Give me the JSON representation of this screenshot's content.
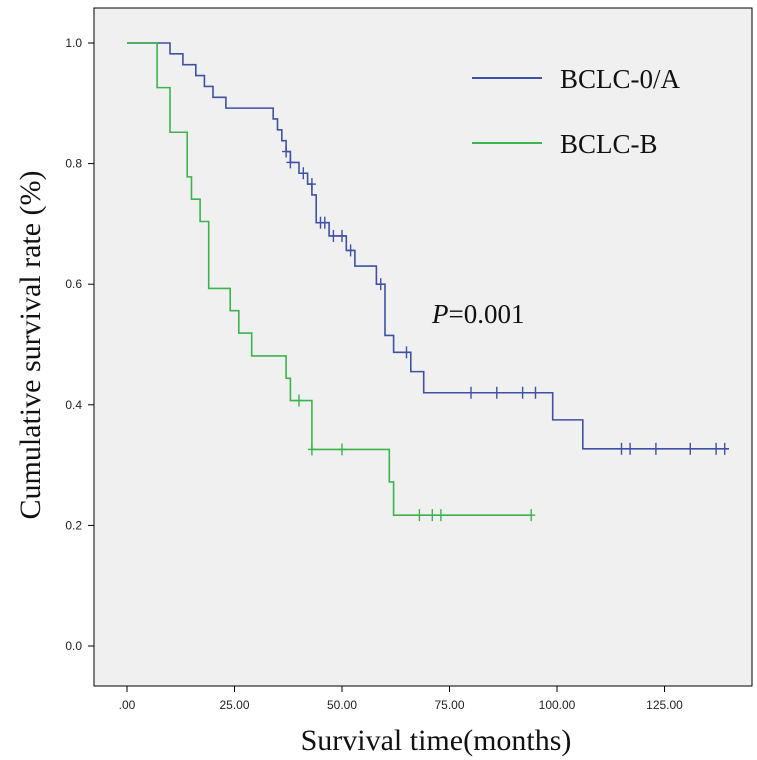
{
  "chart_data": {
    "type": "line",
    "subtype": "kaplan-meier",
    "xlabel": "Survival time(months)",
    "ylabel": "Cumulative survival rate (%)",
    "xlim": [
      0,
      140
    ],
    "ylim": [
      0,
      1.0
    ],
    "x_ticks": [
      0,
      25,
      50,
      75,
      100,
      125
    ],
    "x_tick_labels": [
      ".00",
      "25.00",
      "50.00",
      "75.00",
      "100.00",
      "125.00"
    ],
    "y_ticks": [
      0,
      0.2,
      0.4,
      0.6,
      0.8,
      1.0
    ],
    "y_tick_labels": [
      "0.0",
      "0.2",
      "0.4",
      "0.6",
      "0.8",
      "1.0"
    ],
    "grid": false,
    "legend_position": "top-right",
    "annotation": {
      "italic": "P",
      "rest": "=0.001"
    },
    "series": [
      {
        "name": "BCLC-0/A",
        "color": "#3F51A5",
        "steps": [
          [
            0,
            1.0
          ],
          [
            10,
            0.982
          ],
          [
            13,
            0.964
          ],
          [
            16,
            0.946
          ],
          [
            18,
            0.928
          ],
          [
            20,
            0.91
          ],
          [
            23,
            0.892
          ],
          [
            34,
            0.874
          ],
          [
            35,
            0.856
          ],
          [
            36,
            0.838
          ],
          [
            37,
            0.82
          ],
          [
            38,
            0.802
          ],
          [
            40,
            0.784
          ],
          [
            42,
            0.766
          ],
          [
            43,
            0.748
          ],
          [
            44,
            0.702
          ],
          [
            47,
            0.68
          ],
          [
            51,
            0.656
          ],
          [
            53,
            0.63
          ],
          [
            58,
            0.6
          ],
          [
            60,
            0.515
          ],
          [
            62,
            0.487
          ],
          [
            66,
            0.455
          ],
          [
            69,
            0.42
          ],
          [
            99,
            0.375
          ],
          [
            106,
            0.327
          ]
        ],
        "end_x": 140,
        "censored": [
          [
            37,
            0.82
          ],
          [
            38,
            0.802
          ],
          [
            41,
            0.784
          ],
          [
            43,
            0.766
          ],
          [
            45,
            0.702
          ],
          [
            46,
            0.702
          ],
          [
            48,
            0.68
          ],
          [
            50,
            0.68
          ],
          [
            52,
            0.656
          ],
          [
            59,
            0.6
          ],
          [
            65,
            0.487
          ],
          [
            80,
            0.42
          ],
          [
            86,
            0.42
          ],
          [
            92,
            0.42
          ],
          [
            95,
            0.42
          ],
          [
            115,
            0.327
          ],
          [
            117,
            0.327
          ],
          [
            123,
            0.327
          ],
          [
            131,
            0.327
          ],
          [
            137,
            0.327
          ],
          [
            139,
            0.327
          ]
        ]
      },
      {
        "name": "BCLC-B",
        "color": "#3CB44B",
        "steps": [
          [
            0,
            1.0
          ],
          [
            7,
            0.926
          ],
          [
            10,
            0.852
          ],
          [
            14,
            0.778
          ],
          [
            15,
            0.741
          ],
          [
            17,
            0.704
          ],
          [
            19,
            0.593
          ],
          [
            24,
            0.556
          ],
          [
            26,
            0.519
          ],
          [
            29,
            0.481
          ],
          [
            37,
            0.444
          ],
          [
            38,
            0.407
          ],
          [
            43,
            0.326
          ],
          [
            61,
            0.272
          ],
          [
            62,
            0.217
          ]
        ],
        "end_x": 94,
        "censored": [
          [
            40,
            0.407
          ],
          [
            43,
            0.326
          ],
          [
            50,
            0.326
          ],
          [
            68,
            0.217
          ],
          [
            71,
            0.217
          ],
          [
            73,
            0.217
          ],
          [
            94,
            0.217
          ]
        ]
      }
    ]
  }
}
